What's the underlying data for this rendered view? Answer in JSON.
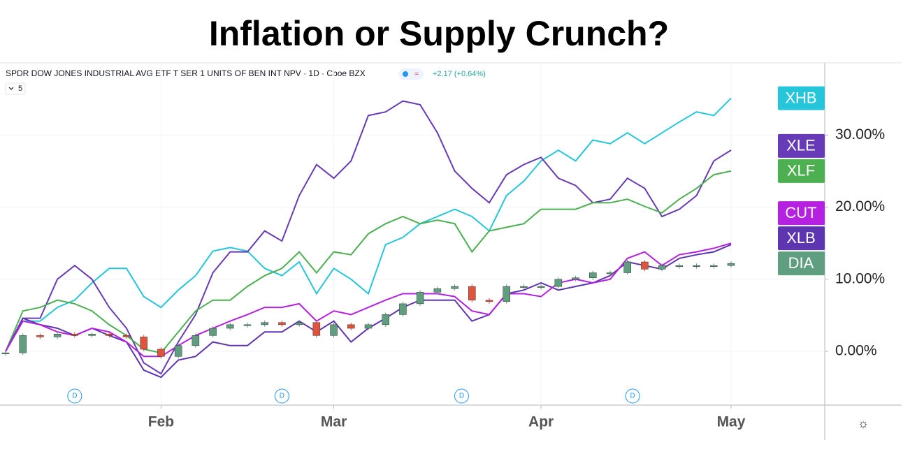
{
  "chart_data": {
    "type": "line",
    "title": "Inflation or Supply Crunch?",
    "subtitle": "SPDR DOW JONES INDUSTRIAL AVG ETF T SER 1 UNITS OF BEN INT NPV · 1D · Cboe BZX",
    "change_label": "+2.17 (+0.64%)",
    "indicator_count": "5",
    "dividend_markers": [
      "D",
      "D",
      "D",
      "D"
    ],
    "categories": [
      null,
      null,
      null,
      null,
      null,
      null,
      null,
      null,
      null,
      "Feb",
      null,
      null,
      null,
      null,
      null,
      null,
      null,
      null,
      null,
      "Mar",
      null,
      null,
      null,
      null,
      null,
      null,
      null,
      null,
      null,
      null,
      null,
      "Apr",
      null,
      null,
      null,
      null,
      null,
      null,
      null,
      null,
      null,
      null,
      "May"
    ],
    "ylim": [
      -7.45,
      40
    ],
    "yticks": [
      {
        "value": 0,
        "label": "0.00%"
      },
      {
        "value": 10,
        "label": "10.00%"
      },
      {
        "value": 20,
        "label": "20.00%"
      },
      {
        "value": 30,
        "label": "30.00%"
      }
    ],
    "grid": true,
    "series": [
      {
        "name": "XHB",
        "color": "#26c6da",
        "values": [
          0,
          4.2,
          4.2,
          6.1,
          7.1,
          9.5,
          11.5,
          11.5,
          7.6,
          6.1,
          8.5,
          10.5,
          13.9,
          14.4,
          13.9,
          11.5,
          10.5,
          12.4,
          8.0,
          11.5,
          10.0,
          8.0,
          14.8,
          15.8,
          17.7,
          18.7,
          19.7,
          18.7,
          16.7,
          21.6,
          23.6,
          26.4,
          27.9,
          26.4,
          29.3,
          28.8,
          30.3,
          28.8,
          30.3,
          31.8,
          33.2,
          32.7,
          35.1
        ]
      },
      {
        "name": "XLE",
        "color": "#673ab7",
        "values": [
          0,
          4.6,
          4.6,
          10.0,
          11.9,
          10.0,
          6.1,
          3.2,
          -1.6,
          -3.1,
          1.3,
          5.1,
          10.9,
          13.8,
          13.8,
          16.7,
          15.3,
          21.6,
          25.9,
          24.0,
          26.4,
          32.7,
          33.2,
          34.7,
          34.2,
          30.3,
          25.0,
          22.6,
          20.6,
          24.5,
          25.9,
          26.9,
          24.0,
          23.0,
          20.6,
          21.1,
          24.0,
          22.6,
          18.7,
          19.7,
          21.6,
          26.4,
          27.9
        ]
      },
      {
        "name": "XLF",
        "color": "#4caf50",
        "values": [
          0,
          5.6,
          6.1,
          7.1,
          6.6,
          5.6,
          3.7,
          2.2,
          0.3,
          -0.2,
          2.7,
          5.6,
          7.1,
          7.1,
          9.0,
          10.5,
          11.5,
          13.8,
          10.9,
          13.8,
          13.4,
          16.3,
          17.7,
          18.7,
          17.7,
          18.2,
          17.7,
          13.8,
          16.7,
          17.2,
          17.7,
          19.7,
          19.7,
          19.7,
          20.6,
          20.6,
          21.1,
          20.1,
          19.2,
          21.1,
          22.6,
          24.5,
          25.0
        ]
      },
      {
        "name": "XLB",
        "color": "#5e35b1",
        "values": [
          0,
          4.6,
          3.7,
          3.2,
          2.2,
          3.2,
          2.2,
          1.3,
          -2.6,
          -3.6,
          -1.2,
          -0.7,
          1.3,
          0.8,
          0.8,
          2.7,
          2.7,
          4.2,
          2.7,
          4.2,
          1.3,
          3.2,
          4.6,
          6.1,
          7.1,
          7.1,
          7.1,
          4.2,
          5.1,
          8.0,
          8.5,
          9.5,
          8.5,
          9.0,
          9.5,
          10.5,
          12.4,
          11.9,
          11.4,
          12.9,
          13.4,
          13.8,
          14.8
        ]
      },
      {
        "name": "CUT",
        "color": "#b620e0",
        "values": [
          0,
          4.2,
          3.7,
          2.7,
          2.2,
          3.2,
          2.7,
          1.3,
          -0.7,
          -0.7,
          0.8,
          2.2,
          3.2,
          4.2,
          5.1,
          6.1,
          6.1,
          6.6,
          4.2,
          5.6,
          5.1,
          6.1,
          7.1,
          8.0,
          8.0,
          8.0,
          7.6,
          5.6,
          5.1,
          8.0,
          8.0,
          7.6,
          9.5,
          10.0,
          9.5,
          10.0,
          12.9,
          13.8,
          11.9,
          13.4,
          13.8,
          14.3,
          15.0
        ]
      },
      {
        "name": "DIA",
        "color": "#5f9f7f",
        "type": "candlestick",
        "down_color": "#e0533d",
        "values": [
          -0.2,
          2.2,
          2.0,
          2.4,
          2.2,
          2.4,
          2.2,
          2.0,
          0.3,
          -0.7,
          0.8,
          2.2,
          3.2,
          3.7,
          3.7,
          4.0,
          3.7,
          4.0,
          2.2,
          3.7,
          3.2,
          3.7,
          5.1,
          6.6,
          8.2,
          8.7,
          9.0,
          7.1,
          6.9,
          9.0,
          9.0,
          9.0,
          10.0,
          10.2,
          10.9,
          10.9,
          12.4,
          11.4,
          11.9,
          11.9,
          11.9,
          11.9,
          12.2
        ]
      }
    ]
  }
}
